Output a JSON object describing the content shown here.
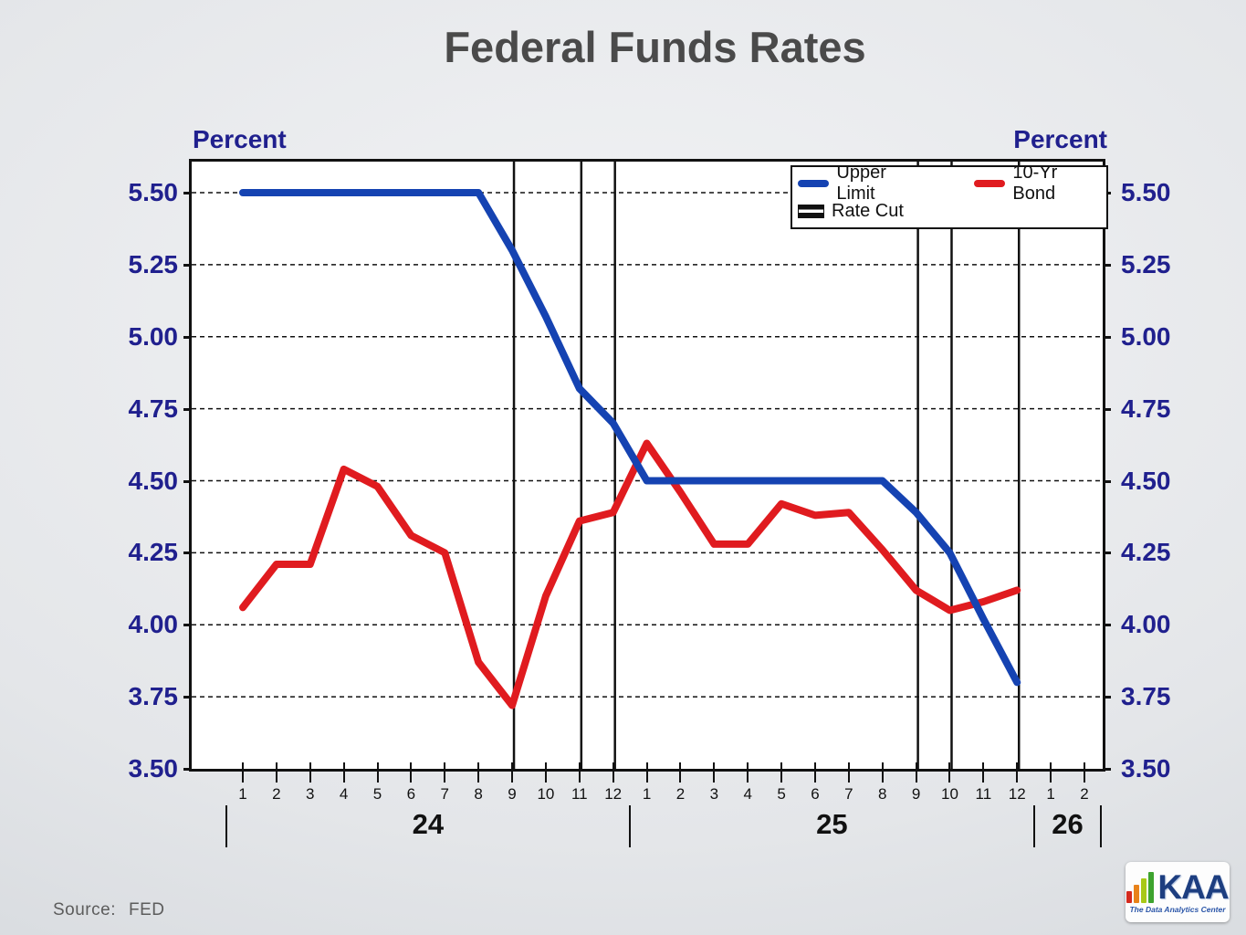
{
  "title": "Federal Funds Rates",
  "axis": {
    "percent_left": "Percent",
    "percent_right": "Percent",
    "y_ticks": [
      "5.50",
      "5.25",
      "5.00",
      "4.75",
      "4.50",
      "4.25",
      "4.00",
      "3.75",
      "3.50"
    ]
  },
  "legend": {
    "upper_limit": "Upper Limit",
    "ten_yr_bond": "10-Yr Bond",
    "rate_cut": "Rate Cut"
  },
  "source": {
    "label": "Source:",
    "value": "FED"
  },
  "logo": {
    "name": "KAA",
    "tagline": "The Data Analytics Center"
  },
  "colors": {
    "upper_limit": "#1543b2",
    "ten_yr_bond": "#e01b1f",
    "axis_text": "#20208e",
    "title_text": "#4a4a4a",
    "rate_cut_line": "#111111"
  },
  "chart_data": {
    "type": "line",
    "title": "Federal Funds Rates",
    "ylabel": "Percent",
    "ylim": [
      3.5,
      5.5
    ],
    "ytick_step": 0.25,
    "grid": "horizontal-dashed",
    "legend_position": "top-right",
    "x_month_labels": [
      "1",
      "2",
      "3",
      "4",
      "5",
      "6",
      "7",
      "8",
      "9",
      "10",
      "11",
      "12",
      "1",
      "2",
      "3",
      "4",
      "5",
      "6",
      "7",
      "8",
      "9",
      "10",
      "11",
      "12",
      "1",
      "2"
    ],
    "years": [
      {
        "label": "24",
        "from": 0,
        "to": 11
      },
      {
        "label": "25",
        "from": 12,
        "to": 23
      },
      {
        "label": "26",
        "from": 24,
        "to": 25
      }
    ],
    "series": [
      {
        "name": "Upper Limit",
        "color": "#1543b2",
        "values": [
          5.5,
          5.5,
          5.5,
          5.5,
          5.5,
          5.5,
          5.5,
          5.5,
          5.3,
          5.07,
          4.82,
          4.7,
          4.5,
          4.5,
          4.5,
          4.5,
          4.5,
          4.5,
          4.5,
          4.5,
          4.39,
          4.25,
          4.02,
          3.8
        ]
      },
      {
        "name": "10-Yr Bond",
        "color": "#e01b1f",
        "values": [
          4.06,
          4.21,
          4.21,
          4.54,
          4.48,
          4.31,
          4.25,
          3.87,
          3.72,
          4.1,
          4.36,
          4.39,
          4.63,
          4.46,
          4.28,
          4.28,
          4.42,
          4.38,
          4.39,
          4.26,
          4.12,
          4.05,
          4.08,
          4.12
        ]
      }
    ],
    "rate_cut_month_indices": [
      8,
      10,
      11,
      20,
      21,
      23
    ]
  }
}
